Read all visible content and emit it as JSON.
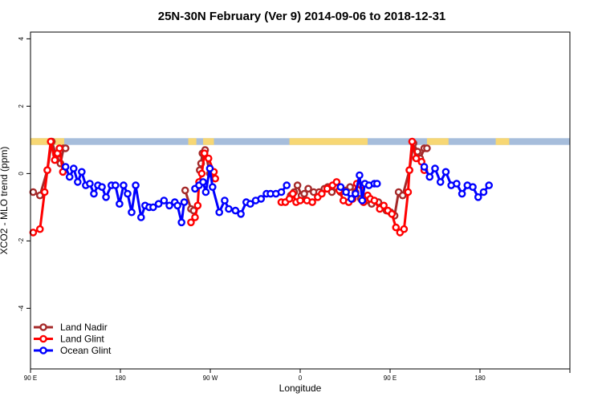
{
  "chart_data": {
    "type": "line",
    "title": "25N-30N February (Ver 9)   2014-09-06 to 2018-12-31",
    "xlabel": "Longitude",
    "ylabel": "XCO2 - MLO trend (ppm)",
    "xlim": [
      0,
      4
    ],
    "ylim": [
      -5.8,
      4.2
    ],
    "x_ticks": [
      {
        "value": 0,
        "label": "90 E"
      },
      {
        "value": 0.6667,
        "label": "180"
      },
      {
        "value": 1.3333,
        "label": "90 W"
      },
      {
        "value": 2.0,
        "label": "0"
      },
      {
        "value": 2.6667,
        "label": "90 E"
      },
      {
        "value": 3.3333,
        "label": "180"
      }
    ],
    "y_ticks": [
      -4,
      -2,
      0,
      2,
      4
    ],
    "land_ocean_band": {
      "y_range": [
        0.85,
        1.05
      ],
      "ocean_color": "#a6bddb",
      "land_color": "#f7d774",
      "land_segments": [
        [
          0,
          0.25
        ],
        [
          1.17,
          1.23
        ],
        [
          1.28,
          1.36
        ],
        [
          1.92,
          2.5
        ],
        [
          2.94,
          3.1
        ],
        [
          3.45,
          3.55
        ]
      ]
    },
    "legend_position": "bottom-left",
    "series": [
      {
        "name": "Land Nadir",
        "color": "#a52a2a",
        "segments": [
          [
            [
              0.02,
              -0.55
            ],
            [
              0.07,
              -0.65
            ],
            [
              0.125,
              0.1
            ],
            [
              0.158,
              0.95
            ],
            [
              0.19,
              0.55
            ],
            [
              0.222,
              0.3
            ],
            [
              0.245,
              0.75
            ],
            [
              0.26,
              0.75
            ]
          ],
          [
            [
              1.147,
              -0.5
            ],
            [
              1.19,
              -1.05
            ],
            [
              1.21,
              -1.1
            ]
          ],
          [
            [
              1.255,
              0.1
            ],
            [
              1.265,
              0.3
            ],
            [
              1.275,
              0.6
            ],
            [
              1.295,
              0.7
            ],
            [
              1.33,
              0.0
            ]
          ],
          [
            [
              1.93,
              -0.65
            ],
            [
              1.955,
              -0.55
            ],
            [
              1.98,
              -0.35
            ],
            [
              2.01,
              -0.65
            ],
            [
              2.03,
              -0.6
            ],
            [
              2.06,
              -0.45
            ],
            [
              2.1,
              -0.55
            ],
            [
              2.14,
              -0.55
            ],
            [
              2.18,
              -0.45
            ],
            [
              2.205,
              -0.4
            ],
            [
              2.235,
              -0.55
            ],
            [
              2.265,
              -0.4
            ],
            [
              2.3,
              -0.55
            ],
            [
              2.34,
              -0.5
            ],
            [
              2.37,
              -0.4
            ],
            [
              2.41,
              -0.55
            ],
            [
              2.45,
              -0.75
            ],
            [
              2.49,
              -0.8
            ],
            [
              2.53,
              -0.9
            ],
            [
              2.58,
              -0.85
            ],
            [
              2.64,
              -1.1
            ],
            [
              2.67,
              -1.15
            ],
            [
              2.7,
              -1.25
            ],
            [
              2.73,
              -0.55
            ],
            [
              2.76,
              -0.65
            ],
            [
              2.81,
              0.1
            ],
            [
              2.84,
              0.9
            ],
            [
              2.87,
              0.65
            ],
            [
              2.89,
              0.45
            ],
            [
              2.92,
              0.75
            ],
            [
              2.94,
              0.75
            ]
          ]
        ]
      },
      {
        "name": "Land Glint",
        "color": "#ff0000",
        "segments": [
          [
            [
              0.02,
              -1.75
            ],
            [
              0.07,
              -1.65
            ],
            [
              0.105,
              -0.55
            ],
            [
              0.125,
              0.1
            ],
            [
              0.15,
              0.95
            ],
            [
              0.18,
              0.4
            ],
            [
              0.2,
              0.6
            ],
            [
              0.215,
              0.75
            ],
            [
              0.24,
              0.05
            ]
          ],
          [
            [
              1.19,
              -1.45
            ],
            [
              1.22,
              -1.3
            ],
            [
              1.24,
              -0.95
            ],
            [
              1.25,
              -0.25
            ],
            [
              1.27,
              0.0
            ],
            [
              1.29,
              0.6
            ],
            [
              1.32,
              0.45
            ],
            [
              1.36,
              0.05
            ],
            [
              1.37,
              -0.15
            ]
          ],
          [
            [
              1.86,
              -0.85
            ],
            [
              1.89,
              -0.85
            ],
            [
              1.92,
              -0.75
            ],
            [
              1.945,
              -0.6
            ],
            [
              1.97,
              -0.85
            ],
            [
              2.0,
              -0.8
            ],
            [
              2.05,
              -0.8
            ],
            [
              2.09,
              -0.85
            ],
            [
              2.13,
              -0.7
            ],
            [
              2.16,
              -0.6
            ],
            [
              2.2,
              -0.45
            ],
            [
              2.24,
              -0.35
            ],
            [
              2.27,
              -0.25
            ],
            [
              2.29,
              -0.5
            ],
            [
              2.32,
              -0.8
            ],
            [
              2.36,
              -0.85
            ],
            [
              2.39,
              -0.75
            ],
            [
              2.42,
              -0.3
            ],
            [
              2.45,
              -0.35
            ],
            [
              2.47,
              -0.85
            ],
            [
              2.5,
              -0.65
            ],
            [
              2.52,
              -0.75
            ],
            [
              2.55,
              -0.8
            ],
            [
              2.59,
              -1.05
            ],
            [
              2.62,
              -0.95
            ],
            [
              2.65,
              -1.1
            ],
            [
              2.68,
              -1.2
            ],
            [
              2.71,
              -1.6
            ],
            [
              2.74,
              -1.75
            ],
            [
              2.77,
              -1.65
            ],
            [
              2.8,
              -0.55
            ],
            [
              2.81,
              0.1
            ],
            [
              2.83,
              0.95
            ],
            [
              2.86,
              0.45
            ],
            [
              2.9,
              0.35
            ],
            [
              2.92,
              0.1
            ]
          ]
        ]
      },
      {
        "name": "Ocean Glint",
        "color": "#0000ff",
        "segments": [
          [
            [
              0.26,
              0.2
            ],
            [
              0.29,
              -0.1
            ],
            [
              0.32,
              0.15
            ],
            [
              0.35,
              -0.25
            ],
            [
              0.38,
              0.05
            ],
            [
              0.41,
              -0.35
            ],
            [
              0.44,
              -0.3
            ],
            [
              0.47,
              -0.6
            ],
            [
              0.5,
              -0.35
            ],
            [
              0.53,
              -0.4
            ],
            [
              0.56,
              -0.7
            ],
            [
              0.6,
              -0.35
            ],
            [
              0.63,
              -0.35
            ],
            [
              0.66,
              -0.9
            ],
            [
              0.69,
              -0.35
            ],
            [
              0.72,
              -0.6
            ],
            [
              0.75,
              -1.15
            ],
            [
              0.78,
              -0.35
            ],
            [
              0.82,
              -1.3
            ],
            [
              0.85,
              -0.95
            ],
            [
              0.88,
              -1.0
            ],
            [
              0.91,
              -1.0
            ],
            [
              0.95,
              -0.9
            ],
            [
              0.99,
              -0.8
            ],
            [
              1.03,
              -0.95
            ],
            [
              1.07,
              -0.85
            ],
            [
              1.09,
              -0.95
            ],
            [
              1.12,
              -1.45
            ],
            [
              1.14,
              -0.85
            ]
          ],
          [
            [
              1.22,
              -0.45
            ],
            [
              1.25,
              -0.35
            ],
            [
              1.28,
              -0.25
            ],
            [
              1.3,
              -0.55
            ],
            [
              1.33,
              0.15
            ],
            [
              1.35,
              -0.4
            ],
            [
              1.4,
              -1.15
            ],
            [
              1.44,
              -0.8
            ],
            [
              1.47,
              -1.05
            ],
            [
              1.52,
              -1.1
            ],
            [
              1.56,
              -1.2
            ],
            [
              1.6,
              -0.85
            ],
            [
              1.63,
              -0.9
            ],
            [
              1.67,
              -0.8
            ],
            [
              1.71,
              -0.75
            ],
            [
              1.75,
              -0.6
            ],
            [
              1.78,
              -0.6
            ],
            [
              1.82,
              -0.6
            ],
            [
              1.86,
              -0.55
            ],
            [
              1.9,
              -0.35
            ]
          ],
          [
            [
              2.3,
              -0.4
            ],
            [
              2.34,
              -0.55
            ],
            [
              2.38,
              -0.75
            ],
            [
              2.41,
              -0.6
            ],
            [
              2.44,
              -0.05
            ],
            [
              2.46,
              -0.8
            ],
            [
              2.48,
              -0.3
            ],
            [
              2.51,
              -0.35
            ],
            [
              2.55,
              -0.3
            ],
            [
              2.57,
              -0.3
            ]
          ],
          [
            [
              2.92,
              0.2
            ],
            [
              2.96,
              -0.1
            ],
            [
              3.0,
              0.15
            ],
            [
              3.04,
              -0.25
            ],
            [
              3.08,
              0.05
            ],
            [
              3.12,
              -0.35
            ],
            [
              3.16,
              -0.3
            ],
            [
              3.2,
              -0.6
            ],
            [
              3.24,
              -0.35
            ],
            [
              3.28,
              -0.4
            ],
            [
              3.32,
              -0.7
            ],
            [
              3.36,
              -0.55
            ],
            [
              3.4,
              -0.35
            ]
          ]
        ]
      }
    ]
  }
}
